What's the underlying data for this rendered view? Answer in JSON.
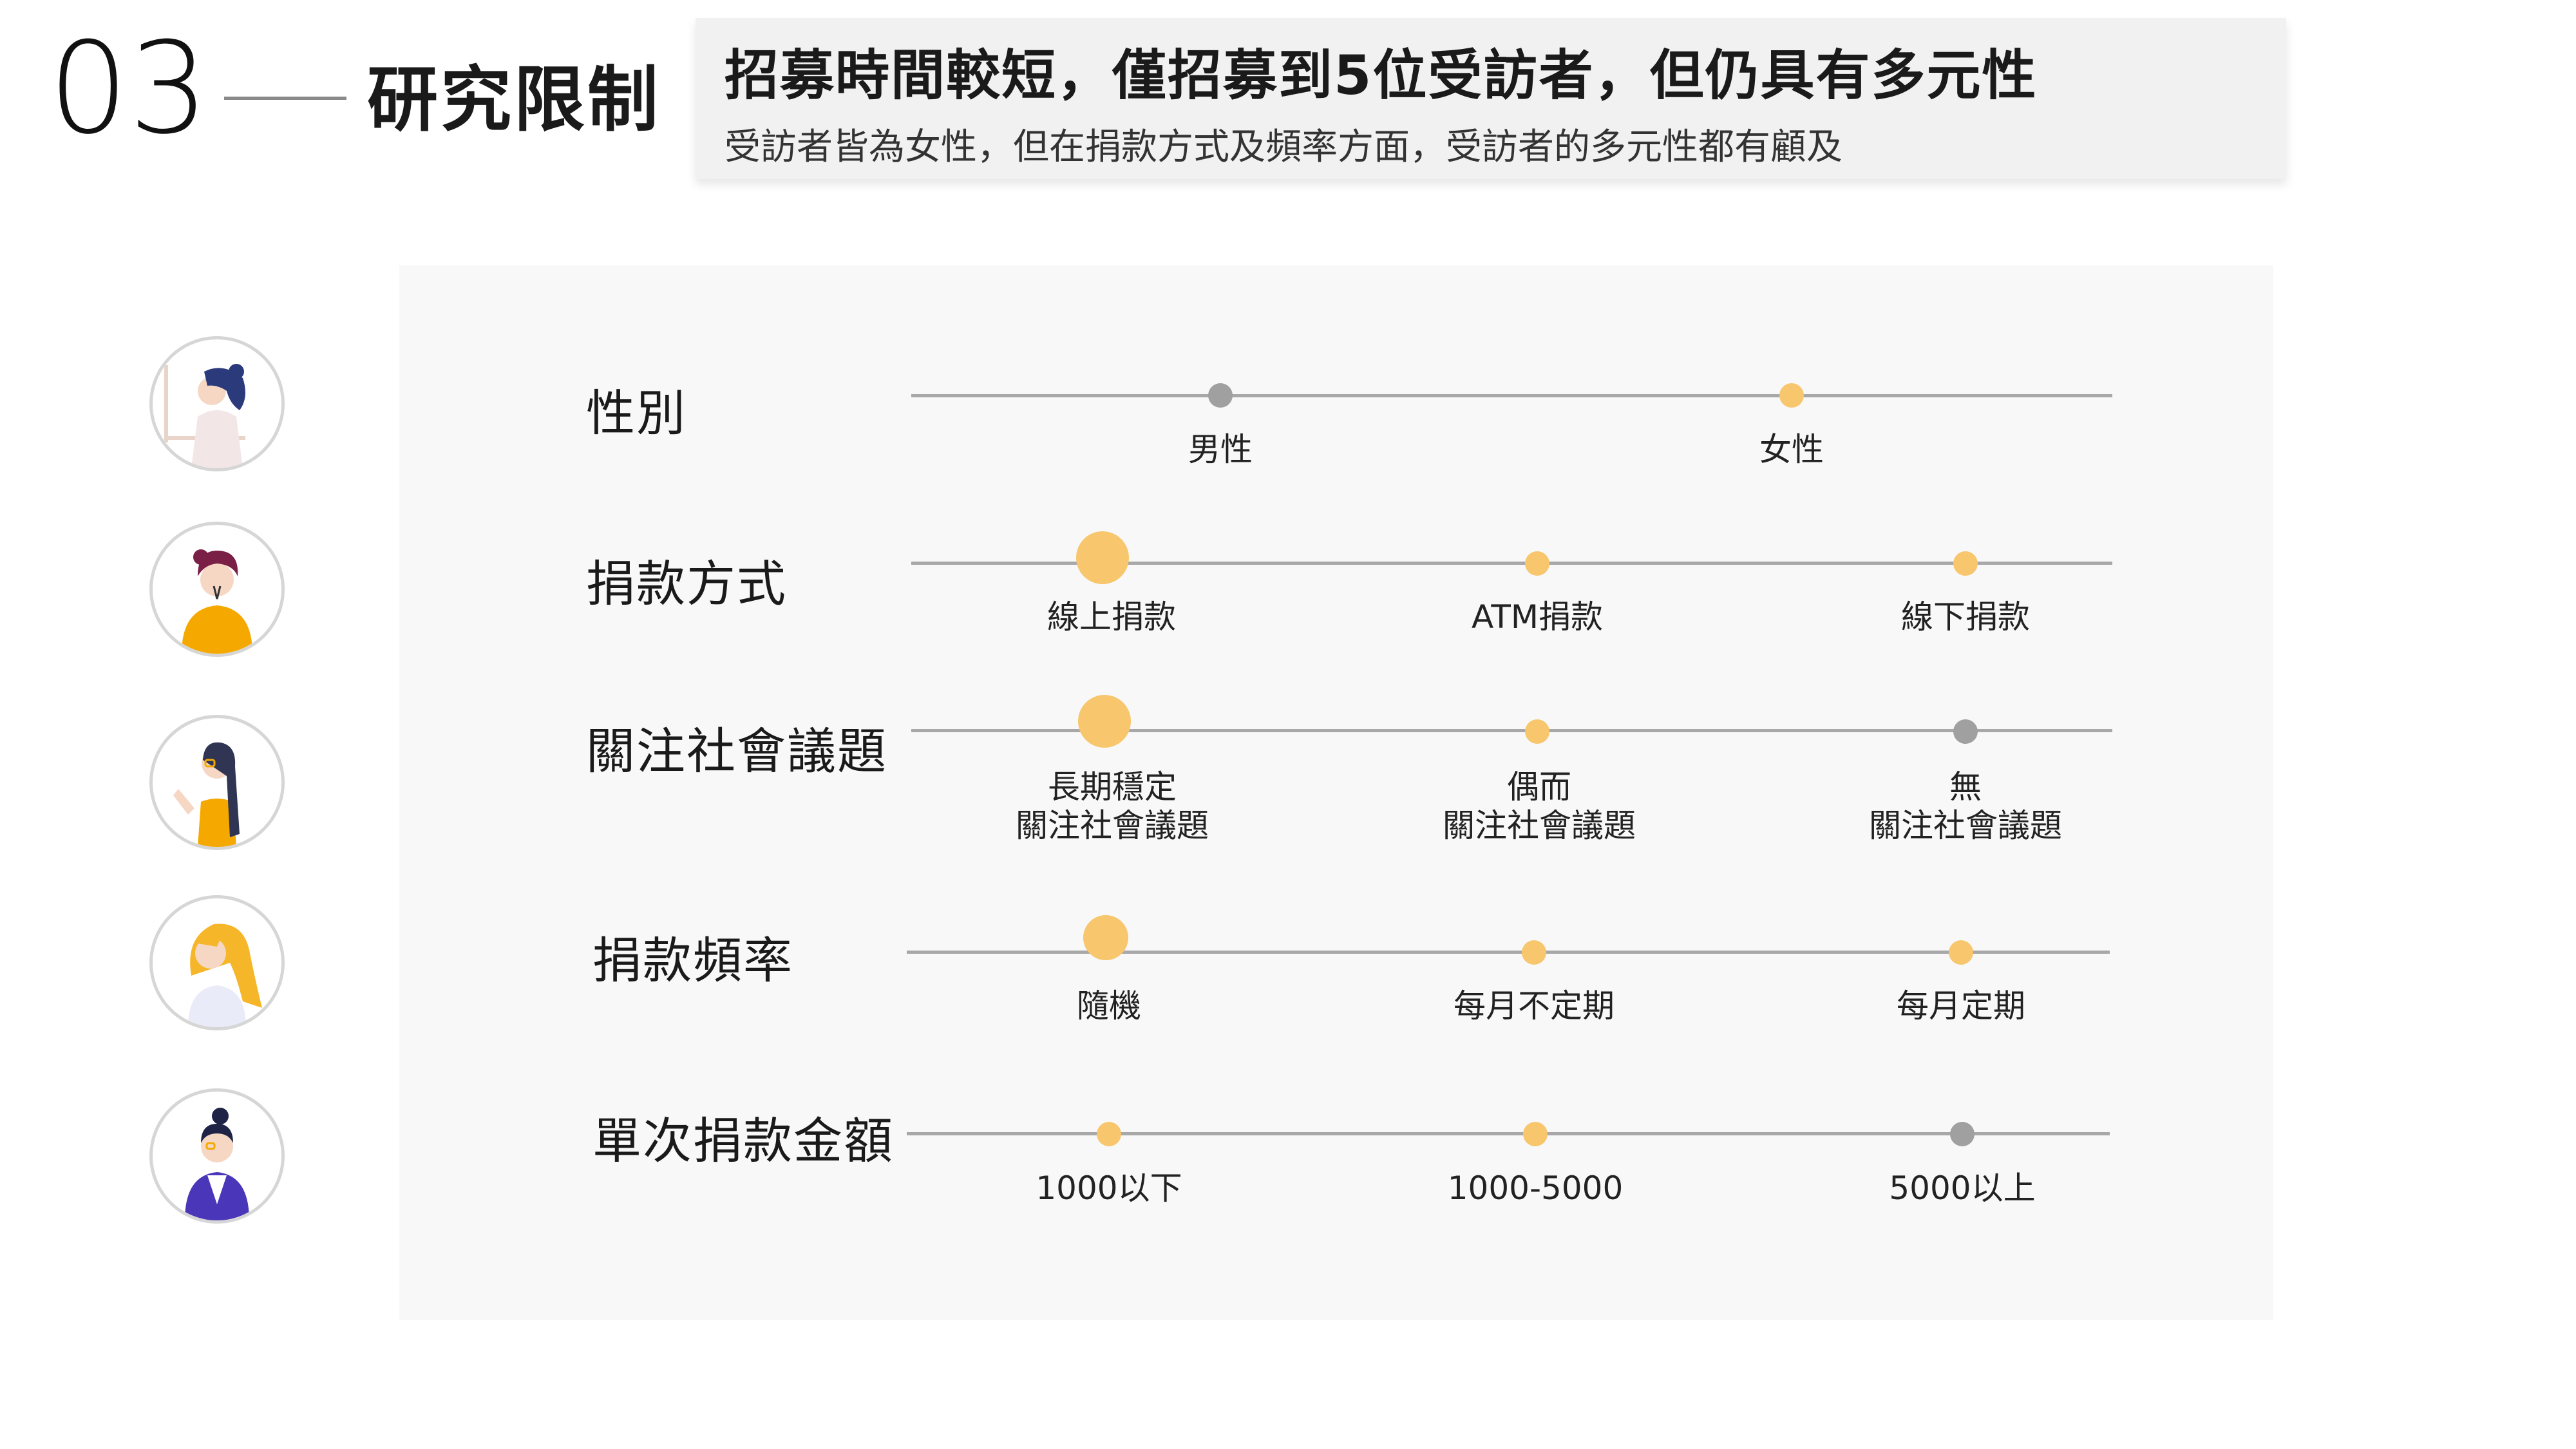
{
  "header": {
    "section_number": "03",
    "section_title": "研究限制"
  },
  "summary": {
    "heading": "招募時間較短，僅招募到5位受訪者，但仍具有多元性",
    "body": "受訪者皆為女性，但在捐款方式及頻率方面，受訪者的多元性都有顧及"
  },
  "colors": {
    "selected": "#f7c66d",
    "unselected": "#a0a0a0",
    "track": "#a8a8a8",
    "panel": "#f8f8f8",
    "summary_box": "#f1f1f1"
  },
  "rows": [
    {
      "label": "性別",
      "avatar_icon": "woman-navy-hair-icon",
      "options": [
        {
          "label": "男性",
          "state": "unselected",
          "emphasis": "normal"
        },
        {
          "label": "女性",
          "state": "selected",
          "emphasis": "normal"
        }
      ]
    },
    {
      "label": "捐款方式",
      "avatar_icon": "woman-yellow-sweater-icon",
      "options": [
        {
          "label": "線上捐款",
          "state": "selected",
          "emphasis": "large"
        },
        {
          "label": "ATM捐款",
          "state": "selected",
          "emphasis": "normal"
        },
        {
          "label": "線下捐款",
          "state": "selected",
          "emphasis": "normal"
        }
      ]
    },
    {
      "label": "關注社會議題",
      "avatar_icon": "woman-long-hair-glasses-icon",
      "options": [
        {
          "label": "長期穩定",
          "label2": "關注社會議題",
          "state": "selected",
          "emphasis": "large"
        },
        {
          "label": "偶而",
          "label2": "關注社會議題",
          "state": "selected",
          "emphasis": "normal"
        },
        {
          "label": "無",
          "label2": "關注社會議題",
          "state": "unselected",
          "emphasis": "normal"
        }
      ]
    },
    {
      "label": "捐款頻率",
      "avatar_icon": "woman-blonde-hair-icon",
      "options": [
        {
          "label": "隨機",
          "state": "selected",
          "emphasis": "large"
        },
        {
          "label": "每月不定期",
          "state": "selected",
          "emphasis": "normal"
        },
        {
          "label": "每月定期",
          "state": "selected",
          "emphasis": "normal"
        }
      ]
    },
    {
      "label": "單次捐款金額",
      "avatar_icon": "woman-purple-jacket-icon",
      "options": [
        {
          "label": "1000以下",
          "state": "selected",
          "emphasis": "normal"
        },
        {
          "label": "1000-5000",
          "state": "selected",
          "emphasis": "normal"
        },
        {
          "label": "5000以上",
          "state": "unselected",
          "emphasis": "normal"
        }
      ]
    }
  ]
}
